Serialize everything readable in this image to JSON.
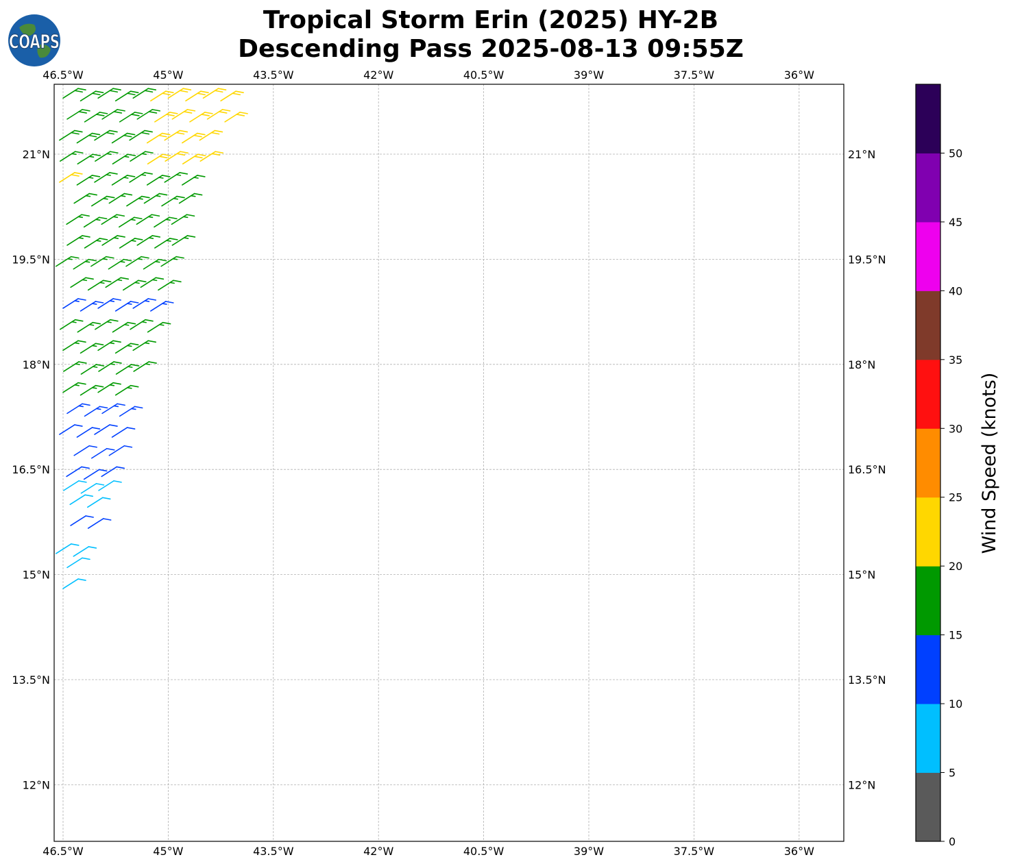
{
  "title_line1": "Tropical Storm Erin (2025) HY-2B",
  "title_line2": "Descending Pass 2025-08-13 09:55Z",
  "logo": {
    "icon": "earth-globe-logo-icon",
    "text": "COAPS"
  },
  "map": {
    "lon_range": [
      -46.6,
      -35.1
    ],
    "lat_range": [
      11.2,
      22.0
    ],
    "lon_ticks": [
      {
        "value": -46.5,
        "label": "46.5°W"
      },
      {
        "value": -45.0,
        "label": "45°W"
      },
      {
        "value": -43.5,
        "label": "43.5°W"
      },
      {
        "value": -42.0,
        "label": "42°W"
      },
      {
        "value": -40.5,
        "label": "40.5°W"
      },
      {
        "value": -39.0,
        "label": "39°W"
      },
      {
        "value": -37.5,
        "label": "37.5°W"
      },
      {
        "value": -36.0,
        "label": "36°W"
      }
    ],
    "lat_ticks": [
      {
        "value": 21.0,
        "label": "21°N"
      },
      {
        "value": 19.5,
        "label": "19.5°N"
      },
      {
        "value": 18.0,
        "label": "18°N"
      },
      {
        "value": 16.5,
        "label": "16.5°N"
      },
      {
        "value": 15.0,
        "label": "15°N"
      },
      {
        "value": 13.5,
        "label": "13.5°N"
      },
      {
        "value": 12.0,
        "label": "12°N"
      }
    ],
    "grid": true
  },
  "colorbar": {
    "label": "Wind Speed (knots)",
    "ticks": [
      "0",
      "5",
      "10",
      "15",
      "20",
      "25",
      "30",
      "35",
      "40",
      "45",
      "50"
    ],
    "bins": [
      {
        "min": 0,
        "max": 5,
        "color": "#5a5a5a"
      },
      {
        "min": 5,
        "max": 10,
        "color": "#00bfff"
      },
      {
        "min": 10,
        "max": 15,
        "color": "#0040ff"
      },
      {
        "min": 15,
        "max": 20,
        "color": "#009900"
      },
      {
        "min": 20,
        "max": 25,
        "color": "#ffd700"
      },
      {
        "min": 25,
        "max": 30,
        "color": "#ff8c00"
      },
      {
        "min": 30,
        "max": 35,
        "color": "#ff1010"
      },
      {
        "min": 35,
        "max": 40,
        "color": "#7f3a2a"
      },
      {
        "min": 40,
        "max": 45,
        "color": "#ee00ee"
      },
      {
        "min": 45,
        "max": 50,
        "color": "#8000b0"
      },
      {
        "min": 50,
        "max": 55,
        "color": "#2c0058"
      }
    ]
  },
  "wind_swath": {
    "description_rows": [
      {
        "lat": 14.8,
        "lon_start": -46.5,
        "count": 1,
        "speed": 8
      },
      {
        "lat": 15.1,
        "lon_start": -46.5,
        "count": 1,
        "speed": 8
      },
      {
        "lat": 15.3,
        "lon_start": -46.6,
        "count": 2,
        "speed": 8
      },
      {
        "lat": 15.7,
        "lon_start": -46.45,
        "count": 2,
        "speed": 12
      },
      {
        "lat": 16.0,
        "lon_start": -46.4,
        "count": 2,
        "speed": 8
      },
      {
        "lat": 16.2,
        "lon_start": -46.55,
        "count": 3,
        "speed": 8
      },
      {
        "lat": 16.4,
        "lon_start": -46.45,
        "count": 3,
        "speed": 12
      },
      {
        "lat": 16.7,
        "lon_start": -46.4,
        "count": 3,
        "speed": 12
      },
      {
        "lat": 17.0,
        "lon_start": -46.55,
        "count": 4,
        "speed": 12
      },
      {
        "lat": 17.3,
        "lon_start": -46.5,
        "count": 4,
        "speed": 14
      },
      {
        "lat": 17.6,
        "lon_start": -46.5,
        "count": 4,
        "speed": 17
      },
      {
        "lat": 17.9,
        "lon_start": -46.55,
        "count": 5,
        "speed": 17
      },
      {
        "lat": 18.2,
        "lon_start": -46.5,
        "count": 5,
        "speed": 17
      },
      {
        "lat": 18.5,
        "lon_start": -46.6,
        "count": 6,
        "speed": 17
      },
      {
        "lat": 18.8,
        "lon_start": -46.5,
        "count": 6,
        "speed": 14
      },
      {
        "lat": 19.1,
        "lon_start": -46.45,
        "count": 6,
        "speed": 17
      },
      {
        "lat": 19.4,
        "lon_start": -46.6,
        "count": 7,
        "speed": 17
      },
      {
        "lat": 19.7,
        "lon_start": -46.5,
        "count": 7,
        "speed": 17
      },
      {
        "lat": 20.0,
        "lon_start": -46.45,
        "count": 7,
        "speed": 17
      },
      {
        "lat": 20.3,
        "lon_start": -46.4,
        "count": 7,
        "speed": 17
      },
      {
        "lat": 20.6,
        "lon_start": -46.55,
        "count": 8,
        "speed": 17
      },
      {
        "lat": 20.9,
        "lon_start": -46.6,
        "count": 9,
        "speed": 17
      },
      {
        "lat": 21.2,
        "lon_start": -46.55,
        "count": 9,
        "speed": 18
      },
      {
        "lat": 21.5,
        "lon_start": -46.5,
        "count": 10,
        "speed": 18
      },
      {
        "lat": 21.8,
        "lon_start": -46.5,
        "count": 10,
        "speed": 19
      }
    ]
  }
}
